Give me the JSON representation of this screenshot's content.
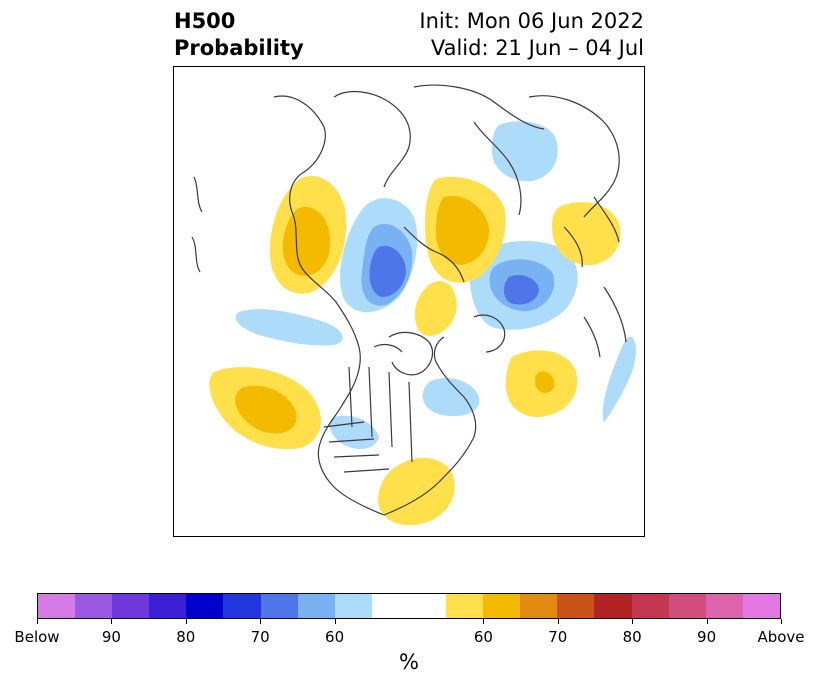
{
  "header": {
    "title_line1": "H500",
    "title_line2": "Probability",
    "init_label": "Init: Mon 06 Jun 2022",
    "valid_label": "Valid: 21 Jun – 04 Jul"
  },
  "colorbar": {
    "unit": "%",
    "tick_labels": [
      "Below",
      "90",
      "80",
      "70",
      "60",
      "60",
      "70",
      "80",
      "90",
      "Above"
    ],
    "colors": [
      "#d67ae6",
      "#9b58e0",
      "#6f38dc",
      "#3b1ed6",
      "#0000cd",
      "#2238de",
      "#4e76e8",
      "#78b2f2",
      "#acdcfa",
      "#ffffff",
      "#ffe04a",
      "#f3ba00",
      "#df8c10",
      "#c85418",
      "#b22424",
      "#c33850",
      "#cf4e7e",
      "#dc64ac",
      "#e478e2"
    ]
  },
  "map": {
    "region": "North America / Northern Hemisphere polar view",
    "colors": {
      "above_60": "#ffe04a",
      "above_70": "#f3ba00",
      "below_60": "#acdcfa",
      "below_70": "#78b2f2",
      "below_80": "#4e76e8",
      "coastline": "#3a3a3a"
    }
  }
}
